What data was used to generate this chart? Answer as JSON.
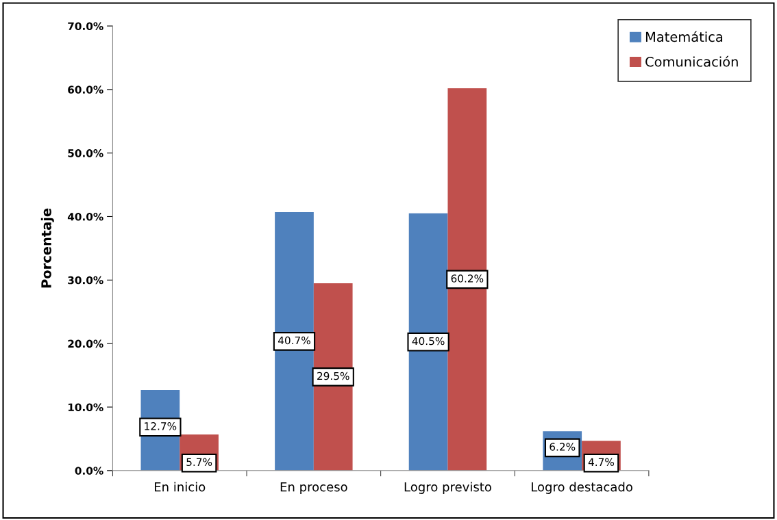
{
  "chart_data": {
    "type": "bar",
    "ylabel": "Porcentaje",
    "categories": [
      "En inicio",
      "En proceso",
      "Logro previsto",
      "Logro destacado"
    ],
    "series": [
      {
        "name": "Matemática",
        "color": "#4f81bd",
        "values": [
          12.7,
          40.7,
          40.5,
          6.2
        ],
        "value_labels": [
          "12.7%",
          "40.7%",
          "40.5%",
          "6.2%"
        ]
      },
      {
        "name": "Comunicación",
        "color": "#c0504d",
        "values": [
          5.7,
          29.5,
          60.2,
          4.7
        ],
        "value_labels": [
          "5.7%",
          "29.5%",
          "60.2%",
          "4.7%"
        ]
      }
    ],
    "ylim": [
      0,
      70
    ],
    "yticks": [
      {
        "value": 0,
        "label": "0.0%"
      },
      {
        "value": 10,
        "label": "10.0%"
      },
      {
        "value": 20,
        "label": "20.0%"
      },
      {
        "value": 30,
        "label": "30.0%"
      },
      {
        "value": 40,
        "label": "40.0%"
      },
      {
        "value": 50,
        "label": "50.0%"
      },
      {
        "value": 60,
        "label": "60.0%"
      },
      {
        "value": 70,
        "label": "70.0%"
      }
    ],
    "grid": false,
    "legend": "top right"
  }
}
